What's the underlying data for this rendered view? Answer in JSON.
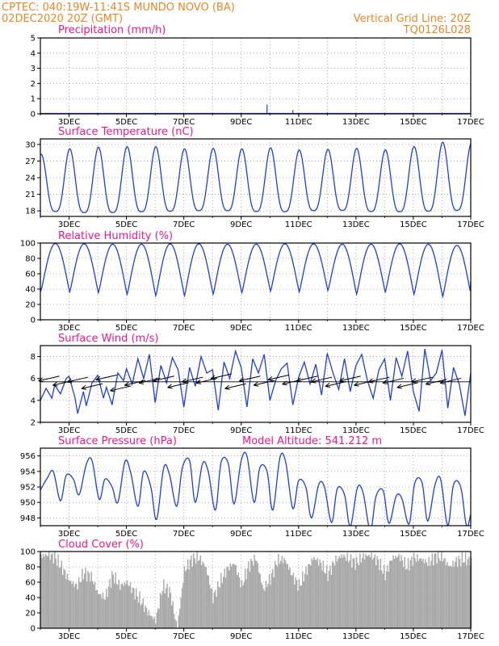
{
  "header": {
    "line1_left": "CPTEC:   040:19W-11:41S   MUNDO NOVO (BA)",
    "line2_left": "02DEC2020 20Z (GMT)",
    "line2_right": "Vertical Grid Line: 20Z",
    "line3_right": "TQ0126L028"
  },
  "colors": {
    "header": "#e8862a",
    "panel_title": "#e8188a",
    "series": "#1f3fd8",
    "bars": "#a8a8a8",
    "wind_arrow": "#000000"
  },
  "x_ticks": [
    "3DEC",
    "5DEC",
    "7DEC",
    "9DEC",
    "11DEC",
    "13DEC",
    "15DEC",
    "17DEC"
  ],
  "chart_data": [
    {
      "type": "bar",
      "id": "precip",
      "title": "Precipitation (mm/h)",
      "x": [
        9.9,
        10.8,
        12.0
      ],
      "values": [
        0.6,
        0.25,
        0.08
      ],
      "x_range": [
        2.0,
        17.0
      ],
      "ylim": [
        0,
        5
      ],
      "yticks": [
        0,
        1,
        2,
        3,
        4,
        5
      ]
    },
    {
      "type": "line",
      "id": "temperature",
      "title": "Surface Temperature (nC)",
      "days": [
        2,
        3,
        4,
        5,
        6,
        7,
        8,
        9,
        10,
        11,
        12,
        13,
        14,
        15,
        16,
        17
      ],
      "min": [
        18.0,
        17.8,
        17.6,
        17.8,
        17.9,
        18.0,
        18.1,
        18.0,
        17.8,
        17.9,
        18.2,
        18.0,
        17.8,
        17.9,
        18.0,
        18.2
      ],
      "max": [
        28.2,
        29.2,
        29.5,
        29.6,
        29.6,
        29.2,
        29.3,
        29.2,
        29.4,
        29.0,
        29.1,
        29.3,
        29.0,
        29.6,
        30.4,
        30.2
      ],
      "x_range": [
        2.0,
        17.0
      ],
      "ylim": [
        17,
        31
      ],
      "yticks": [
        18,
        21,
        24,
        27,
        30
      ]
    },
    {
      "type": "line",
      "id": "humidity",
      "title": "Relative Humidity (%)",
      "days": [
        2,
        3,
        4,
        5,
        6,
        7,
        8,
        9,
        10,
        11,
        12,
        13,
        14,
        15,
        16,
        17
      ],
      "min": [
        38,
        36,
        35,
        33,
        31,
        31,
        33,
        35,
        37,
        36,
        38,
        33,
        36,
        33,
        30,
        30
      ],
      "max": [
        100,
        99,
        99,
        98,
        99,
        99,
        99,
        98,
        99,
        99,
        99,
        98,
        99,
        99,
        98,
        96
      ],
      "x_range": [
        2.0,
        17.0
      ],
      "ylim": [
        0,
        100
      ],
      "yticks": [
        0,
        20,
        40,
        60,
        80,
        100
      ]
    },
    {
      "type": "line",
      "id": "wind",
      "title": "Surface Wind (m/s)",
      "x": [
        2.0,
        2.2,
        2.4,
        2.5,
        2.7,
        2.9,
        3.0,
        3.2,
        3.3,
        3.5,
        3.6,
        3.8,
        4.0,
        4.2,
        4.3,
        4.5,
        4.7,
        4.9,
        5.0,
        5.2,
        5.4,
        5.6,
        5.8,
        6.0,
        6.2,
        6.4,
        6.6,
        6.8,
        7.0,
        7.2,
        7.4,
        7.6,
        7.8,
        8.0,
        8.2,
        8.4,
        8.6,
        8.8,
        9.0,
        9.2,
        9.4,
        9.6,
        9.8,
        10.0,
        10.2,
        10.4,
        10.6,
        10.8,
        11.0,
        11.2,
        11.4,
        11.6,
        11.8,
        12.0,
        12.2,
        12.4,
        12.6,
        12.8,
        13.0,
        13.2,
        13.4,
        13.6,
        13.8,
        14.0,
        14.2,
        14.4,
        14.6,
        14.8,
        15.0,
        15.2,
        15.4,
        15.6,
        15.8,
        16.0,
        16.2,
        16.4,
        16.6,
        16.8,
        17.0
      ],
      "values": [
        4.0,
        5.1,
        4.2,
        5.4,
        4.6,
        6.0,
        6.2,
        4.3,
        2.8,
        4.8,
        3.5,
        5.6,
        6.3,
        4.2,
        5.2,
        3.6,
        6.5,
        5.8,
        6.9,
        5.5,
        7.8,
        6.0,
        8.2,
        3.8,
        7.2,
        5.6,
        7.9,
        6.8,
        3.4,
        7.0,
        5.3,
        8.0,
        6.5,
        6.8,
        3.1,
        7.5,
        6.0,
        8.5,
        7.0,
        3.4,
        7.8,
        6.5,
        8.2,
        4.0,
        5.8,
        6.9,
        7.4,
        3.6,
        6.1,
        7.5,
        5.5,
        7.3,
        4.5,
        8.3,
        6.5,
        5.0,
        7.8,
        4.8,
        7.2,
        8.2,
        5.8,
        4.2,
        6.8,
        7.8,
        4.0,
        7.9,
        6.2,
        8.5,
        4.8,
        3.0,
        8.7,
        5.8,
        6.5,
        8.6,
        3.3,
        7.0,
        5.5,
        2.6,
        6.5
      ],
      "wind_arrows_x": [
        2.3,
        2.8,
        3.3,
        3.8,
        4.3,
        4.8,
        5.3,
        5.8,
        6.3,
        6.8,
        7.3,
        7.8,
        8.3,
        8.8,
        9.3,
        9.8,
        10.3,
        10.8,
        11.3,
        11.8,
        12.3,
        12.8,
        13.3,
        13.8,
        14.3,
        14.8,
        15.3,
        15.8,
        16.3
      ],
      "wind_arrows_y": [
        6.0,
        5.6,
        5.9,
        5.3,
        6.1,
        5.1,
        5.6,
        5.8,
        6.0,
        5.4,
        5.9,
        5.8,
        6.2,
        5.3,
        6.0,
        5.6,
        6.1,
        5.7,
        6.0,
        5.9,
        5.5,
        6.0,
        5.6,
        5.9,
        5.8,
        5.4,
        5.9,
        5.7,
        5.8
      ],
      "x_range": [
        2.0,
        17.0
      ],
      "ylim": [
        2,
        9
      ],
      "yticks": [
        2,
        4,
        6,
        8
      ]
    },
    {
      "type": "line",
      "id": "pressure",
      "title": "Surface Pressure (hPa)",
      "annotation": "Model Altitude: 541.212 m",
      "x": [
        2.0,
        2.25,
        2.45,
        2.7,
        2.9,
        3.15,
        3.35,
        3.6,
        3.8,
        4.05,
        4.25,
        4.5,
        4.7,
        4.95,
        5.15,
        5.4,
        5.6,
        5.85,
        6.05,
        6.3,
        6.5,
        6.75,
        6.95,
        7.2,
        7.4,
        7.65,
        7.85,
        8.1,
        8.3,
        8.55,
        8.75,
        9.0,
        9.2,
        9.45,
        9.65,
        9.9,
        10.1,
        10.35,
        10.55,
        10.8,
        11.0,
        11.25,
        11.45,
        11.7,
        11.9,
        12.15,
        12.35,
        12.6,
        12.8,
        13.05,
        13.25,
        13.5,
        13.7,
        13.95,
        14.15,
        14.4,
        14.6,
        14.85,
        15.05,
        15.3,
        15.5,
        15.75,
        15.95,
        16.2,
        16.4,
        16.65,
        16.85,
        17.0
      ],
      "values": [
        951.6,
        953.2,
        954.0,
        950.2,
        953.5,
        953.0,
        951.0,
        954.9,
        955.4,
        950.4,
        953.0,
        952.0,
        950.0,
        955.3,
        953.8,
        949.5,
        954.0,
        952.0,
        947.8,
        954.5,
        953.6,
        949.5,
        954.5,
        955.4,
        950.0,
        955.0,
        954.0,
        949.0,
        955.2,
        955.0,
        949.8,
        955.4,
        956.0,
        950.0,
        954.5,
        954.0,
        949.0,
        955.8,
        955.2,
        949.2,
        952.8,
        952.0,
        948.0,
        952.3,
        952.0,
        947.4,
        951.8,
        951.0,
        946.9,
        951.9,
        951.2,
        946.4,
        950.8,
        951.5,
        947.3,
        950.8,
        950.5,
        947.2,
        952.5,
        952.6,
        947.6,
        952.2,
        953.0,
        947.0,
        952.3,
        952.0,
        947.0,
        948.5
      ],
      "x_range": [
        2.0,
        17.0
      ],
      "ylim": [
        947,
        957
      ],
      "yticks": [
        948,
        950,
        952,
        954,
        956
      ]
    },
    {
      "type": "bar",
      "id": "cloud",
      "title": "Cloud Cover (%)",
      "x_range": [
        2.0,
        17.0
      ],
      "ylim": [
        0,
        100
      ],
      "yticks": [
        0,
        20,
        40,
        60,
        80,
        100
      ],
      "x": [
        2.0,
        2.25,
        2.5,
        2.75,
        3.0,
        3.25,
        3.5,
        3.75,
        4.0,
        4.25,
        4.5,
        4.75,
        5.0,
        5.25,
        5.5,
        5.75,
        6.0,
        6.25,
        6.5,
        6.75,
        7.0,
        7.25,
        7.5,
        7.75,
        8.0,
        8.25,
        8.5,
        8.75,
        9.0,
        9.25,
        9.5,
        9.75,
        10.0,
        10.25,
        10.5,
        10.75,
        11.0,
        11.25,
        11.5,
        11.75,
        12.0,
        12.25,
        12.5,
        12.75,
        13.0,
        13.25,
        13.5,
        13.75,
        14.0,
        14.25,
        14.5,
        14.75,
        15.0,
        15.25,
        15.5,
        15.75,
        16.0,
        16.25,
        16.5,
        16.75,
        17.0
      ],
      "values": [
        94,
        96,
        92,
        78,
        62,
        55,
        72,
        68,
        45,
        40,
        70,
        55,
        60,
        48,
        35,
        20,
        10,
        55,
        48,
        0,
        75,
        90,
        92,
        80,
        40,
        60,
        78,
        85,
        55,
        82,
        92,
        50,
        65,
        88,
        90,
        70,
        55,
        75,
        92,
        85,
        70,
        88,
        95,
        90,
        85,
        94,
        95,
        88,
        70,
        92,
        94,
        80,
        92,
        90,
        85,
        94,
        92,
        80,
        88,
        90,
        88
      ]
    }
  ]
}
